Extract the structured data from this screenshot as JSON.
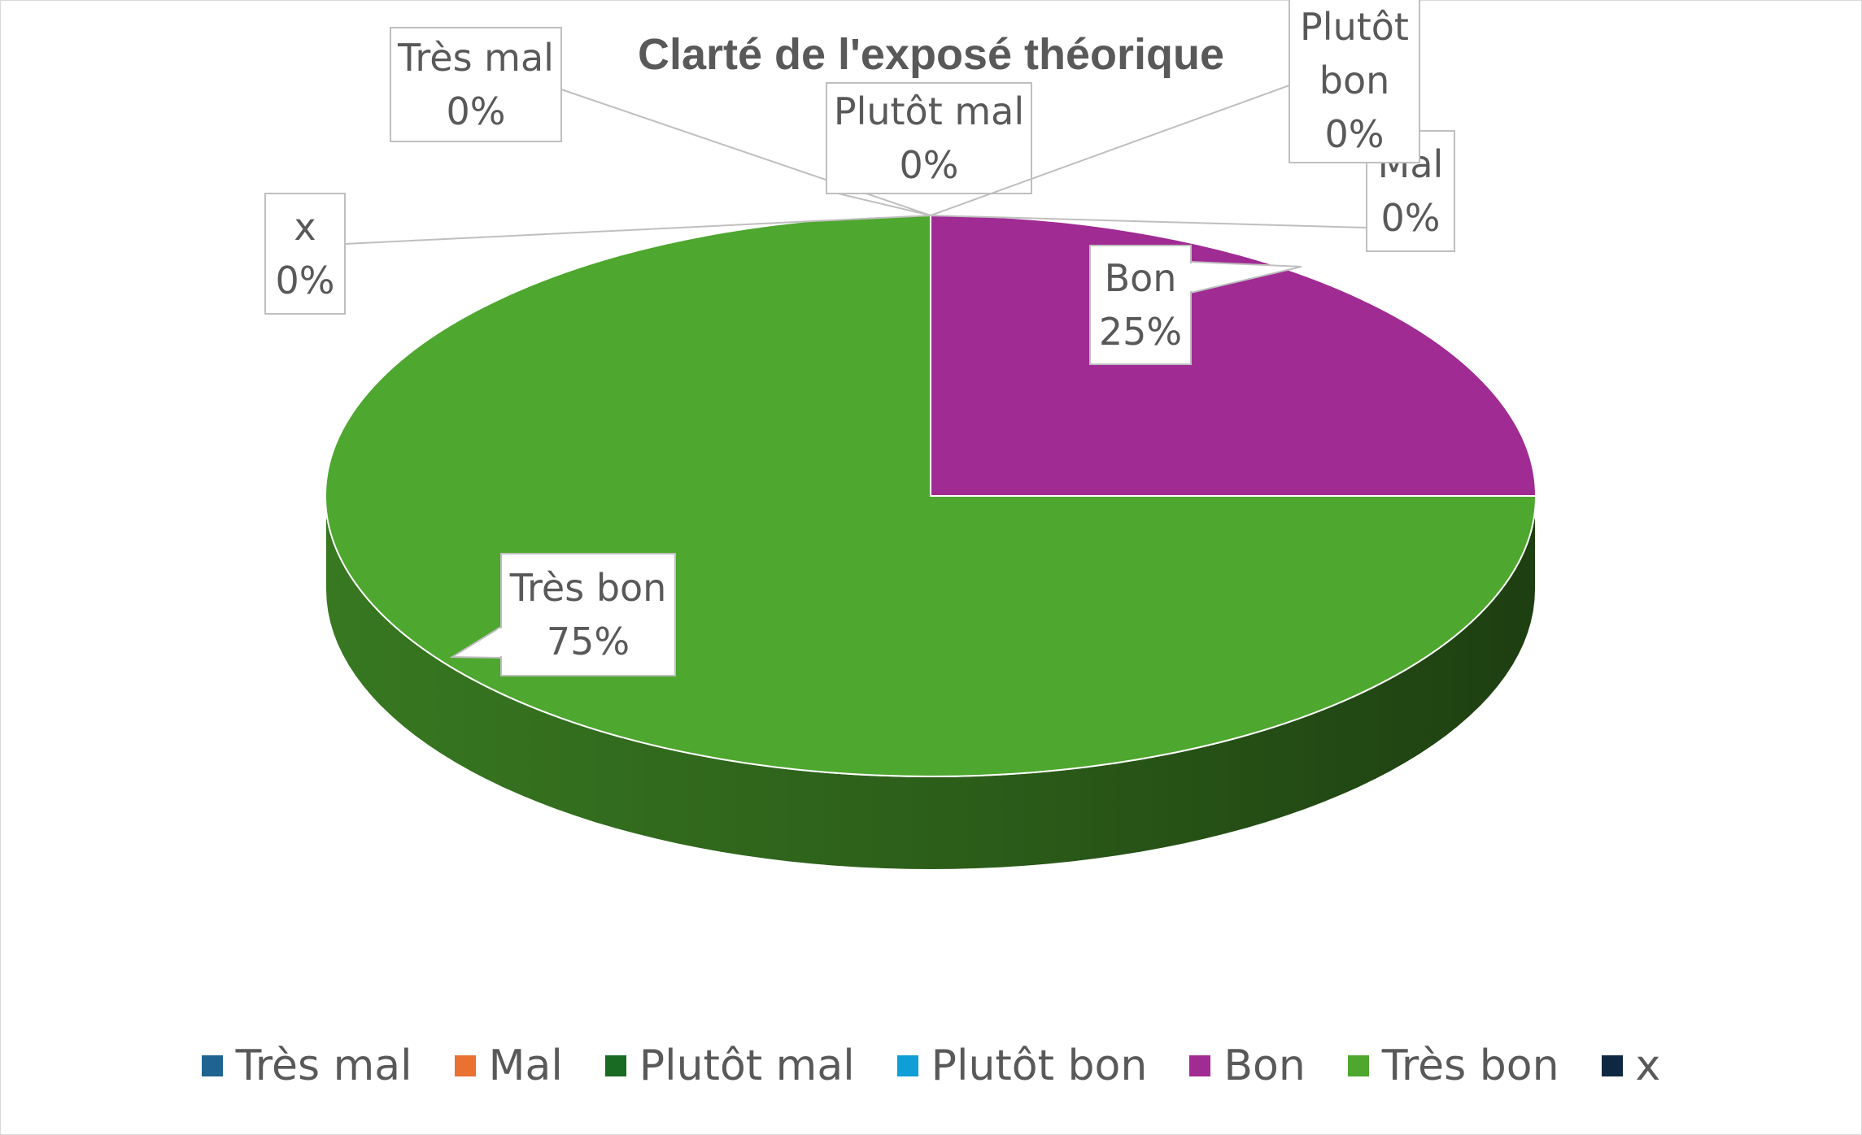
{
  "chart_data": {
    "type": "pie",
    "title": "Clarté de l'exposé théorique",
    "categories": [
      "Très mal",
      "Mal",
      "Plutôt mal",
      "Plutôt bon",
      "Bon",
      "Très bon",
      "x"
    ],
    "values": [
      0,
      0,
      0,
      0,
      25,
      75,
      0
    ],
    "data_labels": [
      {
        "category": "Très mal",
        "value": "0%"
      },
      {
        "category": "Mal",
        "value": "0%"
      },
      {
        "category": "Plutôt mal",
        "value": "0%"
      },
      {
        "category": "Plutôt bon",
        "value": "0%"
      },
      {
        "category": "Bon",
        "value": "25%"
      },
      {
        "category": "Très bon",
        "value": "75%"
      },
      {
        "category": "x",
        "value": "0%"
      }
    ],
    "colors": [
      "#1f6391",
      "#e97132",
      "#196b24",
      "#0f9ed5",
      "#a02b93",
      "#4ea72e",
      "#0e2841"
    ],
    "legend_position": "bottom",
    "style": "3d-pie"
  }
}
